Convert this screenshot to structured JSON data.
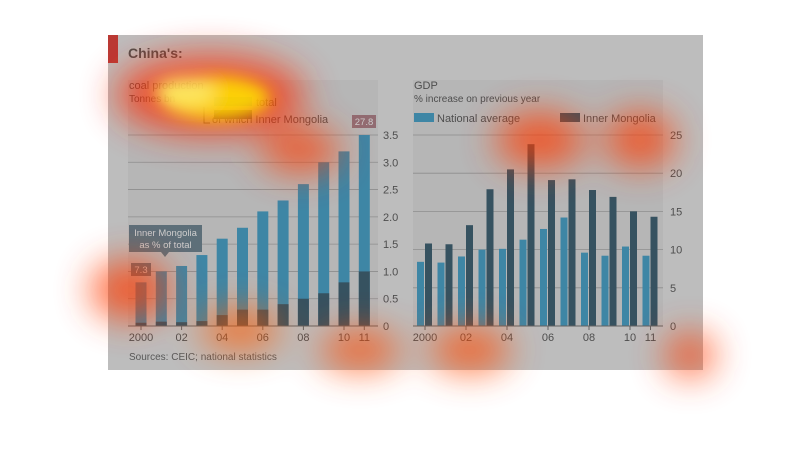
{
  "header": {
    "title": "China's:",
    "accent_color": "#e3120b"
  },
  "sources": "Sources: CEIC; national statistics",
  "chart_data": [
    {
      "type": "bar",
      "title": "coal production",
      "subtitle": "Tonnes bn",
      "legend": [
        "total",
        "of which Inner Mongolia"
      ],
      "annotation": {
        "label_line1": "Inner Mongolia",
        "label_line2": "as % of total",
        "first_value": "7.3",
        "last_value": "27.8"
      },
      "x_tick_labels": [
        "2000",
        "02",
        "04",
        "06",
        "08",
        "10",
        "11"
      ],
      "categories": [
        "2000",
        "2001",
        "2002",
        "2003",
        "2004",
        "2005",
        "2006",
        "2007",
        "2008",
        "2009",
        "2010",
        "2011"
      ],
      "series": [
        {
          "name": "total",
          "values": [
            0.8,
            1.0,
            1.1,
            1.3,
            1.6,
            1.8,
            2.1,
            2.3,
            2.6,
            3.0,
            3.2,
            3.5
          ],
          "color": "#1b8fc0"
        },
        {
          "name": "of which Inner Mongolia",
          "values": [
            0.06,
            0.08,
            0.07,
            0.09,
            0.2,
            0.3,
            0.3,
            0.4,
            0.5,
            0.6,
            0.8,
            1.0
          ],
          "color": "#0e3b52"
        }
      ],
      "ylim": [
        0,
        3.5
      ],
      "y_ticks": [
        0,
        0.5,
        1.0,
        1.5,
        2.0,
        2.5,
        3.0,
        3.5
      ],
      "y_tick_labels": [
        "0",
        "0.5",
        "1.0",
        "1.5",
        "2.0",
        "2.5",
        "3.0",
        "3.5"
      ],
      "grid": true
    },
    {
      "type": "bar",
      "title": "GDP",
      "subtitle": "% increase on previous year",
      "categories": [
        "2000",
        "2001",
        "2002",
        "2003",
        "2004",
        "2005",
        "2006",
        "2007",
        "2008",
        "2009",
        "2010",
        "2011"
      ],
      "x_tick_labels": [
        "2000",
        "02",
        "04",
        "06",
        "08",
        "10",
        "11"
      ],
      "series": [
        {
          "name": "National average",
          "values": [
            8.4,
            8.3,
            9.1,
            10.0,
            10.1,
            11.3,
            12.7,
            14.2,
            9.6,
            9.2,
            10.4,
            9.2
          ],
          "color": "#1b8fc0"
        },
        {
          "name": "Inner Mongolia",
          "values": [
            10.8,
            10.7,
            13.2,
            17.9,
            20.5,
            23.8,
            19.1,
            19.2,
            17.8,
            16.9,
            15.0,
            14.3
          ],
          "color": "#0e3b52"
        }
      ],
      "ylim": [
        0,
        25
      ],
      "y_ticks": [
        0,
        5,
        10,
        15,
        20,
        25
      ],
      "y_tick_labels": [
        "0",
        "5",
        "10",
        "15",
        "20",
        "25"
      ],
      "grid": true
    }
  ]
}
